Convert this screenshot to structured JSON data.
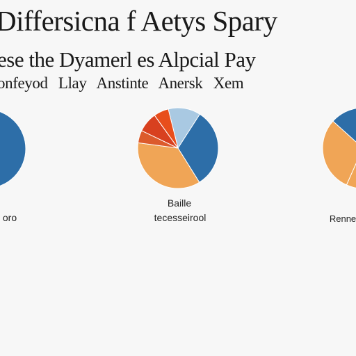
{
  "page": {
    "title": "Differsicna f Aetys Spary",
    "subtitle_line1": "ese the Dyamerl es Alpcial Pay",
    "subtitle_line2": "onfeyod Llay Anstinte Anersk Xem"
  },
  "chart_data": [
    {
      "type": "pie",
      "caption": [
        "",
        "oro"
      ],
      "slices": [
        {
          "value": 100,
          "color": "#2d6ea8"
        }
      ]
    },
    {
      "type": "pie",
      "caption": [
        "Baille",
        "tecesseirool"
      ],
      "slices": [
        {
          "value": 13,
          "color": "#a9c9e2"
        },
        {
          "value": 32,
          "color": "#2d6ea8"
        },
        {
          "value": 36,
          "color": "#f0a556"
        },
        {
          "value": 5,
          "color": "#dc5b2c"
        },
        {
          "value": 8,
          "color": "#d8401f"
        },
        {
          "value": 6,
          "color": "#e84e1c"
        }
      ]
    },
    {
      "type": "pie",
      "caption": [
        "",
        "Renne"
      ],
      "slices": [
        {
          "value": 30,
          "color": "#f0a556"
        },
        {
          "value": 25,
          "color": "#2d6ea8"
        },
        {
          "value": 45,
          "color": "#f0a556"
        }
      ]
    }
  ]
}
